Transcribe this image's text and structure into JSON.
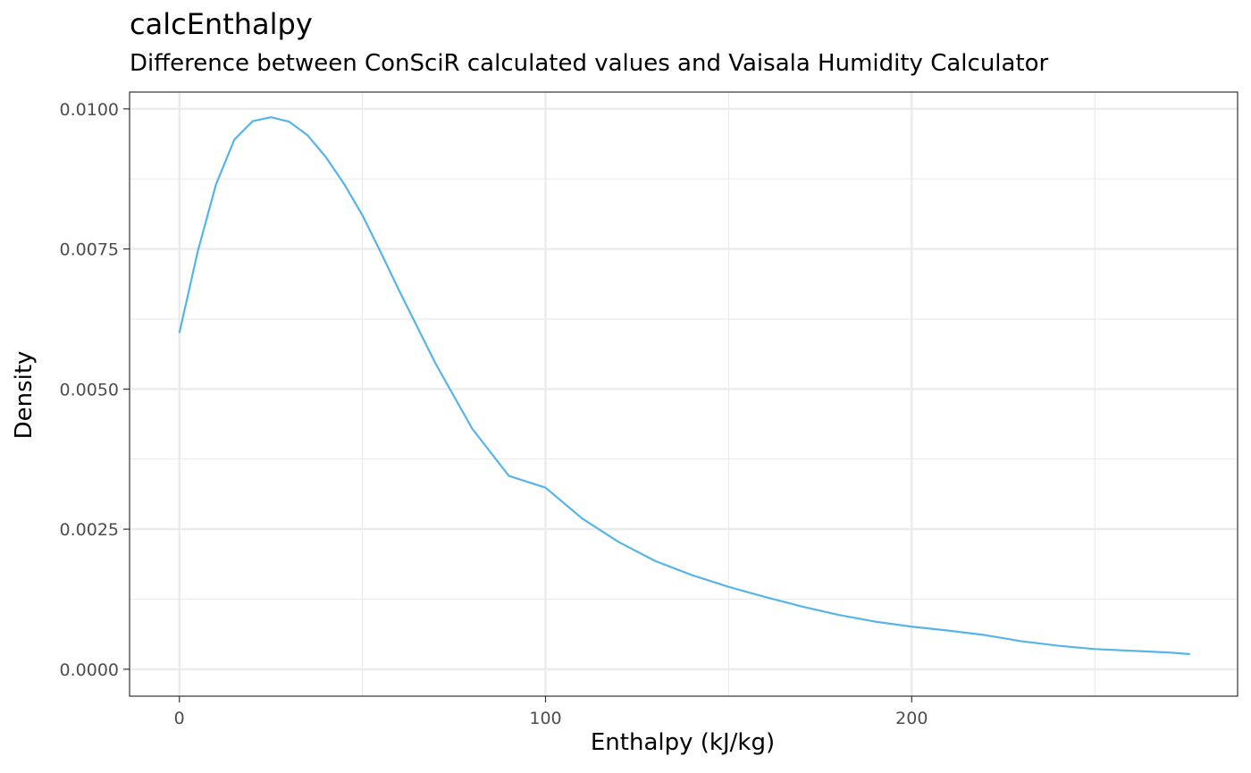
{
  "chart_data": {
    "type": "line",
    "title": "calcEnthalpy",
    "subtitle": "Difference between ConSciR calculated values and Vaisala Humidity Calculator",
    "xlabel": "Enthalpy (kJ/kg)",
    "ylabel": "Density",
    "xlim": [
      -13.6,
      289
    ],
    "ylim": [
      -0.00048,
      0.0103
    ],
    "xticks": [
      0,
      100,
      200
    ],
    "xtick_labels": [
      "0",
      "100",
      "200"
    ],
    "yticks": [
      0,
      0.0025,
      0.005,
      0.0075,
      0.01
    ],
    "ytick_labels": [
      "0.0000",
      "0.0025",
      "0.0050",
      "0.0075",
      "0.0100"
    ],
    "grid": true,
    "legend": "none",
    "line_color": "#56B4E9",
    "series": [
      {
        "x": [
          0,
          5,
          10,
          15,
          20,
          25,
          30,
          35,
          40,
          45,
          50,
          55,
          60,
          70,
          80,
          90,
          100,
          110,
          120,
          130,
          140,
          150,
          160,
          170,
          180,
          190,
          200,
          210,
          220,
          230,
          240,
          250,
          260,
          270,
          276
        ],
        "values": [
          0.006,
          0.00745,
          0.00865,
          0.00945,
          0.00978,
          0.00985,
          0.00977,
          0.00953,
          0.00914,
          0.00866,
          0.0081,
          0.00744,
          0.00676,
          0.00545,
          0.00429,
          0.00345,
          0.00324,
          0.00269,
          0.00227,
          0.00193,
          0.00168,
          0.00147,
          0.00129,
          0.00112,
          0.00097,
          0.00085,
          0.00076,
          0.00069,
          0.00061,
          0.0005,
          0.00042,
          0.00036,
          0.00033,
          0.0003,
          0.00027
        ]
      }
    ]
  }
}
